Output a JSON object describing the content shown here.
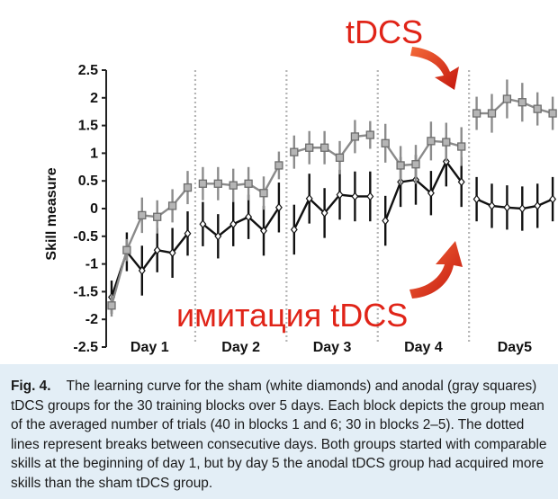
{
  "chart_data": {
    "type": "line",
    "ylabel": "Skill measure",
    "ylim": [
      -2.5,
      2.5
    ],
    "yticks": [
      "2.5",
      "2",
      "1.5",
      "1",
      "0.5",
      "0",
      "-0.5",
      "-1",
      "-1.5",
      "-2",
      "-2.5"
    ],
    "day_labels": [
      "Day 1",
      "Day 2",
      "Day 3",
      "Day 4",
      "Day5"
    ],
    "x": [
      1,
      2,
      3,
      4,
      5,
      6,
      7,
      8,
      9,
      10,
      11,
      12,
      13,
      14,
      15,
      16,
      17,
      18,
      19,
      20,
      21,
      22,
      23,
      24,
      25,
      26,
      27,
      28,
      29,
      30
    ],
    "grid": false,
    "series": [
      {
        "marker": "square",
        "color": "#8a8a8a",
        "values": [
          -1.75,
          -0.75,
          -0.12,
          -0.15,
          0.05,
          0.38,
          0.45,
          0.45,
          0.42,
          0.45,
          0.28,
          0.78,
          1.02,
          1.1,
          1.1,
          0.92,
          1.3,
          1.33,
          1.18,
          0.78,
          0.8,
          1.22,
          1.2,
          1.12,
          1.72,
          1.72,
          1.98,
          1.92,
          1.8,
          1.72
        ],
        "errors": [
          0.2,
          0.2,
          0.32,
          0.3,
          0.3,
          0.3,
          0.3,
          0.3,
          0.3,
          0.3,
          0.3,
          0.25,
          0.3,
          0.3,
          0.3,
          0.3,
          0.3,
          0.25,
          0.35,
          0.35,
          0.35,
          0.35,
          0.35,
          0.35,
          0.3,
          0.35,
          0.35,
          0.35,
          0.3,
          0.3
        ]
      },
      {
        "marker": "diamond",
        "color": "#111111",
        "values": [
          -1.6,
          -0.78,
          -1.12,
          -0.75,
          -0.8,
          -0.45,
          -0.28,
          -0.5,
          -0.28,
          -0.15,
          -0.4,
          0.02,
          -0.38,
          0.18,
          -0.08,
          0.25,
          0.22,
          0.22,
          -0.22,
          0.48,
          0.52,
          0.28,
          0.85,
          0.48,
          0.17,
          0.05,
          0.02,
          0.0,
          0.05,
          0.17
        ],
        "errors": [
          0.3,
          0.35,
          0.45,
          0.4,
          0.45,
          0.4,
          0.4,
          0.4,
          0.4,
          0.4,
          0.45,
          0.45,
          0.45,
          0.45,
          0.45,
          0.45,
          0.45,
          0.45,
          0.45,
          0.45,
          0.45,
          0.4,
          0.45,
          0.45,
          0.4,
          0.4,
          0.4,
          0.4,
          0.4,
          0.4
        ]
      }
    ],
    "day_break_after": [
      6,
      12,
      18,
      24
    ]
  },
  "annotations": {
    "top": "tDCS",
    "bottom": "имитация tDCS",
    "arrow_color": "#e02418"
  },
  "caption": {
    "label": "Fig. 4.",
    "text": "The learning curve for the sham (white diamonds) and anodal (gray squares) tDCS groups for the 30 training blocks over 5 days. Each block depicts the group mean of the averaged number of trials (40 in blocks 1 and 6; 30 in blocks 2–5). The dotted lines represent breaks between consecutive days. Both groups started with comparable skills at the beginning of day 1, but by day 5 the anodal tDCS group had acquired more skills than the sham tDCS group."
  }
}
